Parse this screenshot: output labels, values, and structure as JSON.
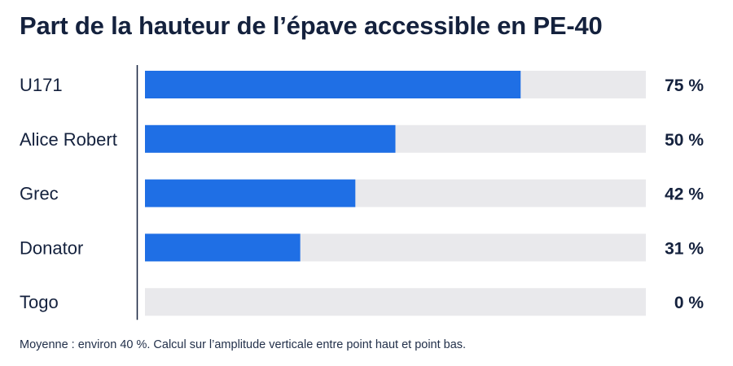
{
  "title": "Part de la hauteur de l’épave accessible en PE-40",
  "footnote": "Moyenne : environ 40 %. Calcul sur l’amplitude verticale entre point haut et point bas.",
  "colors": {
    "bar": "#1f6fe5",
    "track": "#e9e9ec",
    "axis": "#14213d",
    "text": "#14213d"
  },
  "chart_data": {
    "type": "bar",
    "orientation": "horizontal",
    "title": "Part de la hauteur de l’épave accessible en PE-40",
    "categories": [
      "U171",
      "Alice Robert",
      "Grec",
      "Donator",
      "Togo"
    ],
    "values": [
      75,
      50,
      42,
      31,
      0
    ],
    "value_labels": [
      "75 %",
      "50 %",
      "42 %",
      "31 %",
      "0 %"
    ],
    "unit": "%",
    "xlim": [
      0,
      100
    ],
    "grid": false,
    "legend": "none"
  }
}
